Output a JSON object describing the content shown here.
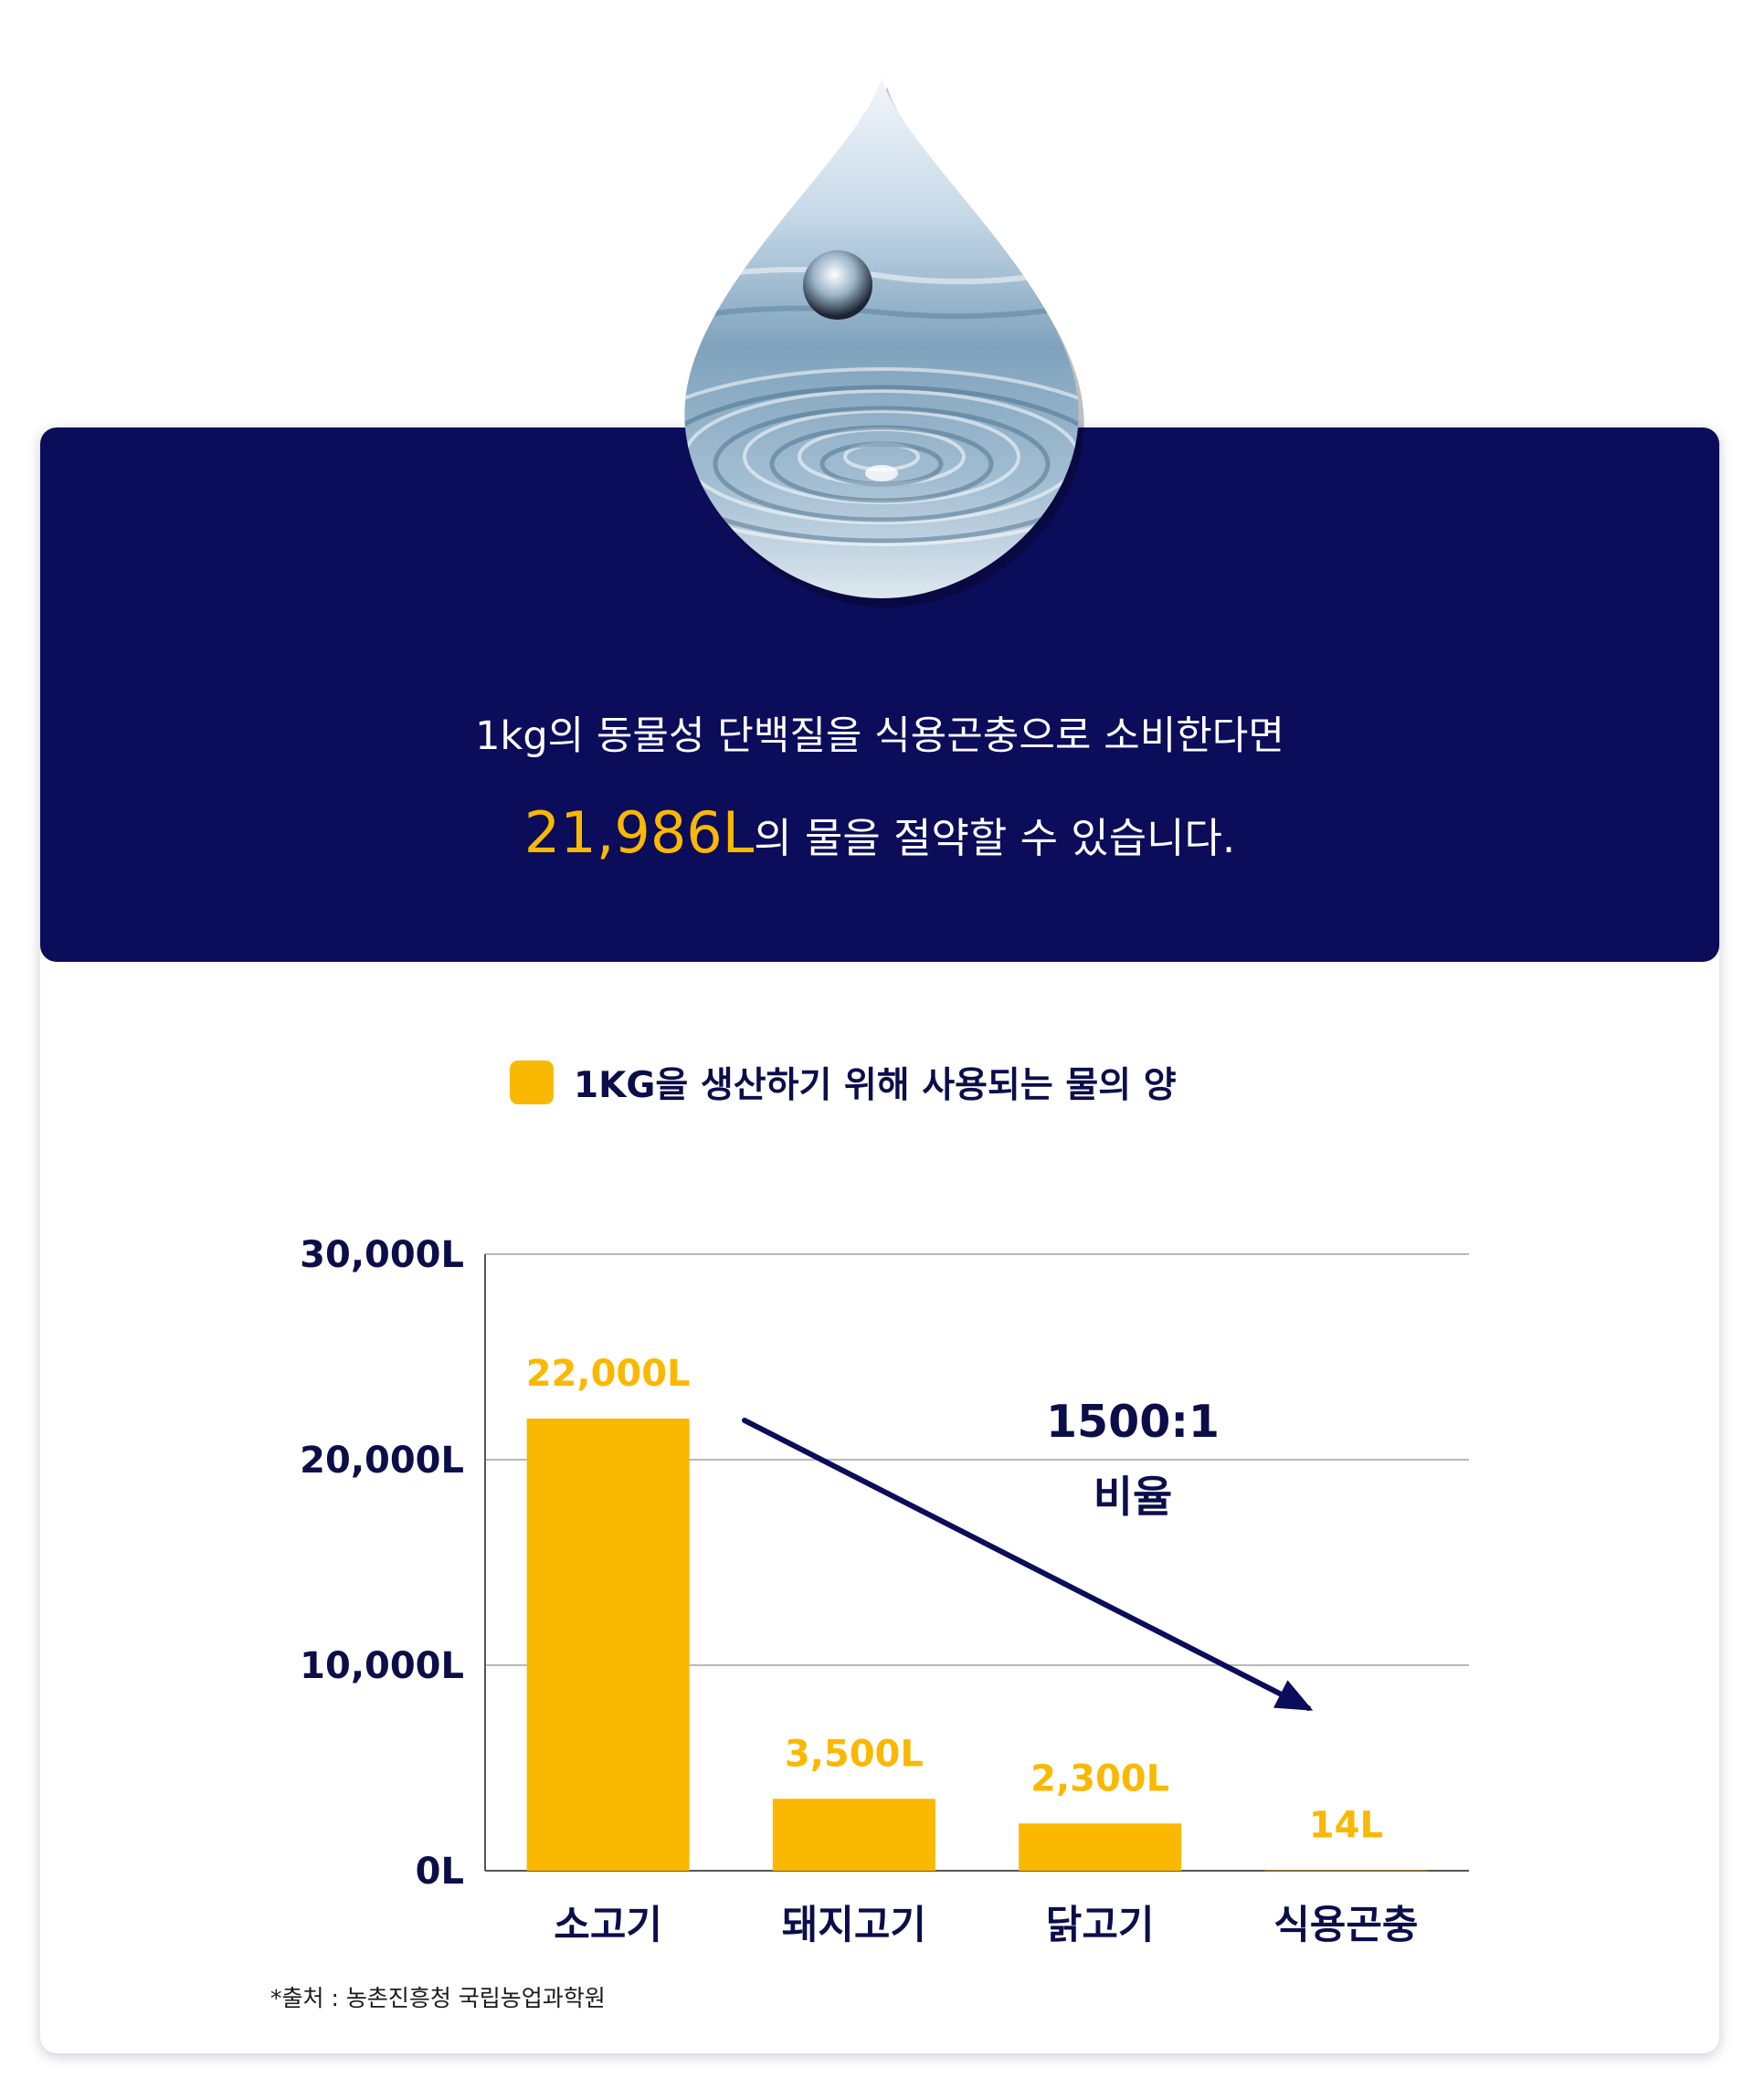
{
  "colors": {
    "navy": "#0b0c5a",
    "accent": "#fbb800",
    "text_dark": "#0c0e4a",
    "grid": "#b9b9b9"
  },
  "banner": {
    "line1": "1kg의 동물성 단백질을 식용곤충으로 소비한다면",
    "line2_highlight": "21,986L",
    "line2_rest": "의 물을 절약할 수 있습니다."
  },
  "chart_data": {
    "type": "bar",
    "title": "1KG을 생산하기 위해 사용되는 물의 양",
    "categories": [
      "소고기",
      "돼지고기",
      "닭고기",
      "식용곤충"
    ],
    "values": [
      22000,
      3500,
      2300,
      14
    ],
    "value_labels": [
      "22,000L",
      "3,500L",
      "2,300L",
      "14L"
    ],
    "ylim": [
      0,
      30000
    ],
    "yticks": [
      0,
      10000,
      20000,
      30000
    ],
    "ytick_labels": [
      "0L",
      "10,000L",
      "20,000L",
      "30,000L"
    ],
    "grid": true,
    "legend": "top-center",
    "annotation": {
      "ratio": "1500:1",
      "label": "비율",
      "arrow_from": "소고기",
      "arrow_to": "식용곤충"
    }
  },
  "source": "*출처 : 농촌진흥청 국립농업과학원"
}
